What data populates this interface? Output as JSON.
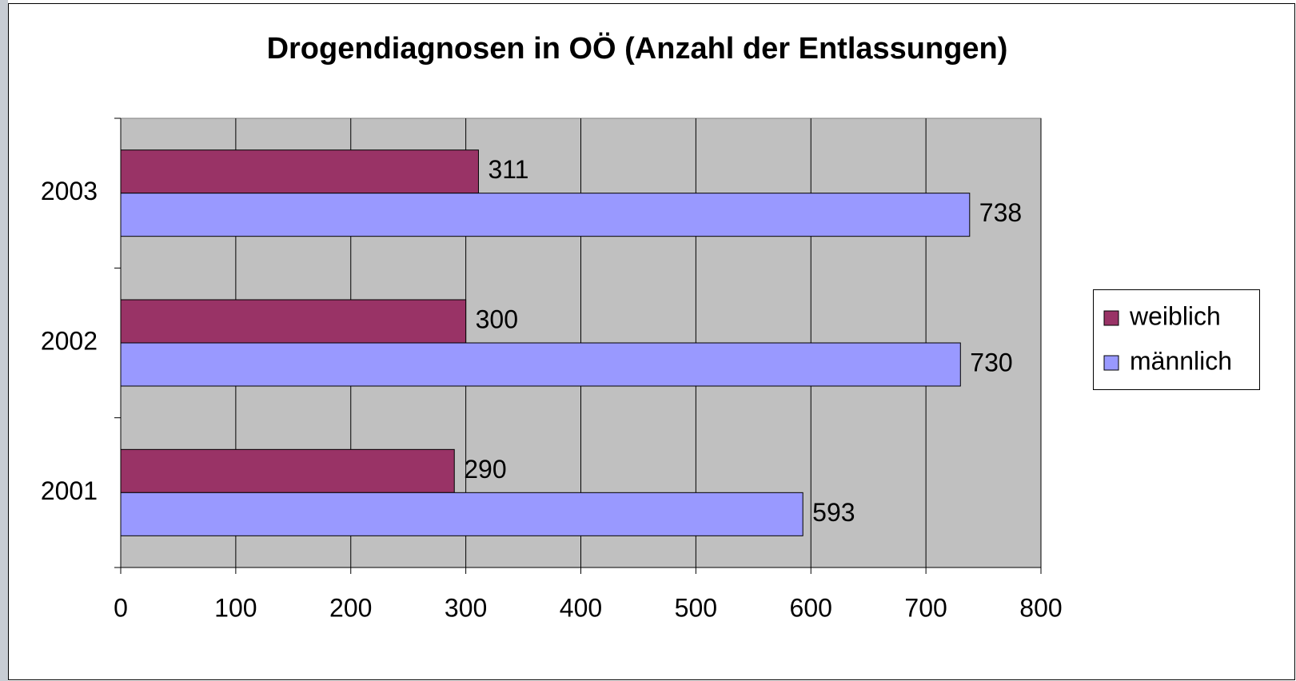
{
  "chart_data": {
    "type": "bar",
    "orientation": "horizontal",
    "title": "Drogendiagnosen in OÖ (Anzahl der Entlassungen)",
    "categories": [
      "2001",
      "2002",
      "2003"
    ],
    "series": [
      {
        "name": "weiblich",
        "color": "#993366",
        "values": [
          290,
          300,
          311
        ]
      },
      {
        "name": "männlich",
        "color": "#9999ff",
        "values": [
          593,
          730,
          738
        ]
      }
    ],
    "xlim": [
      0,
      800
    ],
    "xticks": [
      0,
      100,
      200,
      300,
      400,
      500,
      600,
      700,
      800
    ],
    "grid": true,
    "legend": "right"
  }
}
